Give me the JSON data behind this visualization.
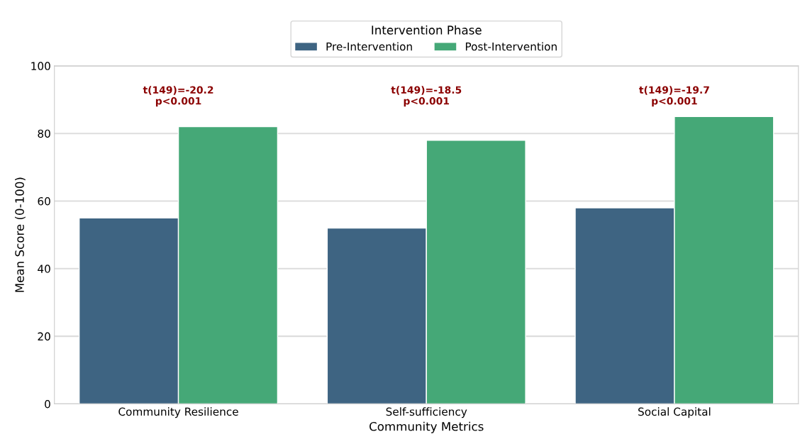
{
  "chart_data": {
    "type": "bar",
    "xlabel": "Community Metrics",
    "ylabel": "Mean Score (0-100)",
    "legend_title": "Intervention Phase",
    "categories": [
      "Community Resilience",
      "Self-sufficiency",
      "Social Capital"
    ],
    "series": [
      {
        "name": "Pre-Intervention",
        "color": "#3e6482",
        "values": [
          55,
          52,
          58
        ]
      },
      {
        "name": "Post-Intervention",
        "color": "#45a877",
        "values": [
          82,
          78,
          85
        ]
      }
    ],
    "ylim": [
      0,
      100
    ],
    "yticks": [
      0,
      20,
      40,
      60,
      80,
      100
    ],
    "grid": "y",
    "legend": "top",
    "annotations": [
      "t(149)=-20.2\np<0.001",
      "t(149)=-18.5\np<0.001",
      "t(149)=-19.7\np<0.001"
    ]
  }
}
